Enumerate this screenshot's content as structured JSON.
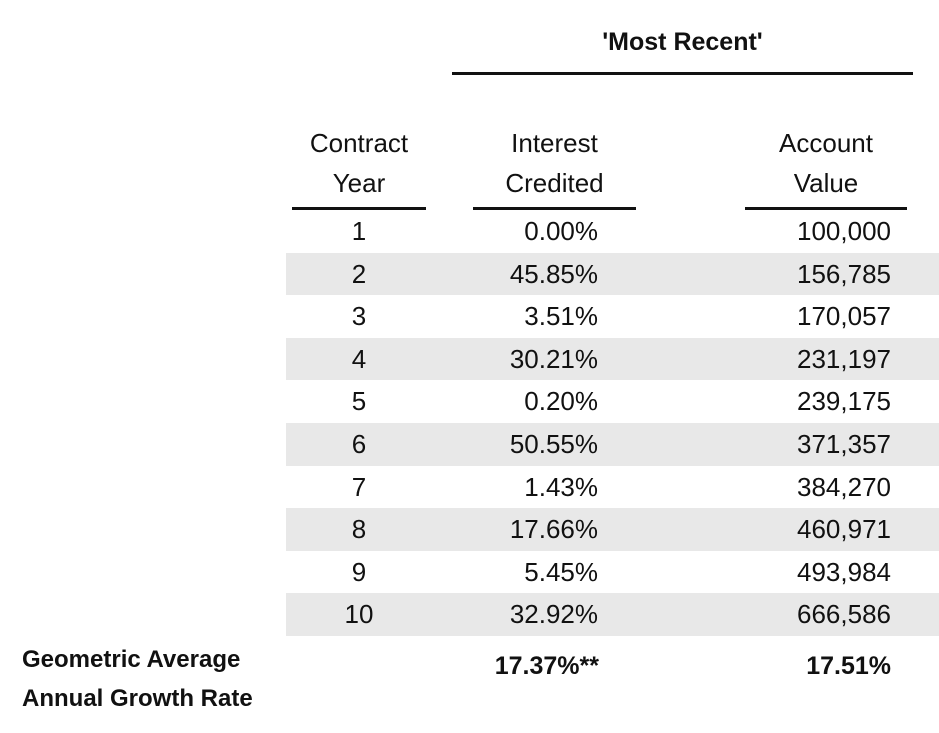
{
  "table": {
    "group_title": "'Most Recent'",
    "headers": {
      "year": [
        "Contract",
        "Year"
      ],
      "interest": [
        "Interest",
        "Credited"
      ],
      "account": [
        "Account",
        "Value"
      ]
    },
    "rows": [
      {
        "year": "1",
        "interest": "0.00%",
        "account": "100,000"
      },
      {
        "year": "2",
        "interest": "45.85%",
        "account": "156,785"
      },
      {
        "year": "3",
        "interest": "3.51%",
        "account": "170,057"
      },
      {
        "year": "4",
        "interest": "30.21%",
        "account": "231,197"
      },
      {
        "year": "5",
        "interest": "0.20%",
        "account": "239,175"
      },
      {
        "year": "6",
        "interest": "50.55%",
        "account": "371,357"
      },
      {
        "year": "7",
        "interest": "1.43%",
        "account": "384,270"
      },
      {
        "year": "8",
        "interest": "17.66%",
        "account": "460,971"
      },
      {
        "year": "9",
        "interest": "5.45%",
        "account": "493,984"
      },
      {
        "year": "10",
        "interest": "32.92%",
        "account": "666,586"
      }
    ],
    "footer": {
      "label": [
        "Geometric Average",
        "Annual Growth Rate"
      ],
      "interest": "17.37%**",
      "account": "17.51%"
    }
  },
  "colors": {
    "shaded_row": "#e8e8e8",
    "rule": "#111111"
  }
}
